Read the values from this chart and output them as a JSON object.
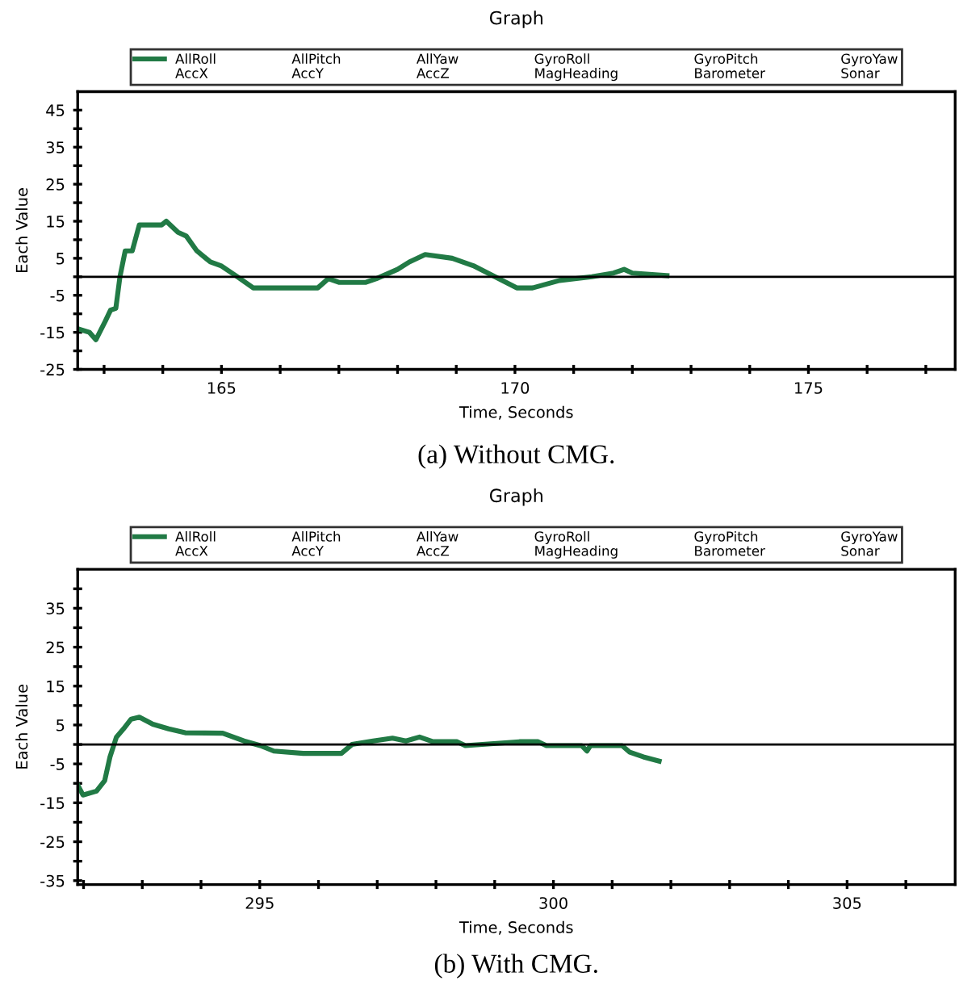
{
  "chart_data": [
    {
      "type": "line",
      "title": "Graph",
      "xlabel": "Time, Seconds",
      "ylabel": "Each Value",
      "x": [
        162.55,
        162.75,
        162.86,
        163.02,
        163.11,
        163.2,
        163.27,
        163.36,
        163.48,
        163.6,
        163.98,
        164.06,
        164.26,
        164.4,
        164.58,
        164.81,
        164.99,
        165.27,
        165.54,
        166.64,
        166.82,
        167.0,
        167.46,
        167.64,
        168.0,
        168.2,
        168.47,
        168.93,
        169.29,
        169.66,
        170.03,
        170.3,
        170.76,
        171.31,
        171.68,
        171.86,
        172.0,
        172.59
      ],
      "series": [
        {
          "name": "AllRoll",
          "color": "#217a45",
          "values": [
            -14,
            -15,
            -17,
            -12,
            -9,
            -8.5,
            0,
            7,
            7,
            14,
            14,
            15,
            12,
            11,
            7,
            4,
            3,
            0,
            -3,
            -3,
            -0.5,
            -1.5,
            -1.5,
            -0.5,
            2,
            4,
            6,
            5,
            3,
            0,
            -3,
            -3,
            -1,
            0,
            1,
            2,
            1,
            0.3
          ]
        }
      ],
      "annotations": [
        "(a) Without CMG.",
        "AllPitch",
        "AllYaw",
        "GyroRoll",
        "GyroPitch",
        "GyroYaw",
        "AccX",
        "AccY",
        "AccZ",
        "MagHeading",
        "Barometer",
        "Sonar"
      ],
      "xlim": [
        162.55,
        177.5
      ],
      "xticks": [
        {
          "value": 163,
          "label": null
        },
        {
          "value": 164,
          "label": null
        },
        165,
        {
          "value": 166,
          "label": null
        },
        {
          "value": 167,
          "label": null
        },
        {
          "value": 168,
          "label": null
        },
        {
          "value": 169,
          "label": null
        },
        170,
        {
          "value": 171,
          "label": null
        },
        {
          "value": 172,
          "label": null
        },
        {
          "value": 173,
          "label": null
        },
        {
          "value": 174,
          "label": null
        },
        175,
        {
          "value": 176,
          "label": null
        },
        {
          "value": 177,
          "label": null
        }
      ],
      "ylim": [
        -25,
        50
      ],
      "yticks": [
        -25,
        {
          "value": -20,
          "label": null
        },
        -15,
        {
          "value": -10,
          "label": null
        },
        -5,
        {
          "value": 0,
          "label": null
        },
        5,
        {
          "value": 10,
          "label": null
        },
        15,
        {
          "value": 20,
          "label": null
        },
        25,
        {
          "value": 30,
          "label": null
        },
        35,
        {
          "value": 40,
          "label": null
        },
        45
      ],
      "ref_lines": [
        {
          "axis": "y",
          "value": 0,
          "color": "#000000"
        }
      ],
      "legend": "top",
      "grid": false
    },
    {
      "type": "line",
      "title": "Graph",
      "xlabel": "Time, Seconds",
      "ylabel": "Each Value",
      "x": [
        291.9,
        291.99,
        292.22,
        292.36,
        292.45,
        292.56,
        292.68,
        292.81,
        292.95,
        293.18,
        293.45,
        293.73,
        294.37,
        294.73,
        295.01,
        295.24,
        295.74,
        296.39,
        296.57,
        296.93,
        297.26,
        297.49,
        297.72,
        297.95,
        298.36,
        298.5,
        299.42,
        299.74,
        299.88,
        300.48,
        300.57,
        300.63,
        301.17,
        301.3,
        301.53,
        301.8
      ],
      "series": [
        {
          "name": "AllRoll",
          "color": "#217a45",
          "values": [
            -10.4,
            -13,
            -12,
            -9.3,
            -3.2,
            1.9,
            4,
            6.5,
            7,
            5.2,
            4,
            3,
            2.9,
            0.9,
            -0.3,
            -1.7,
            -2.3,
            -2.3,
            0,
            0.9,
            1.6,
            0.9,
            1.9,
            0.7,
            0.7,
            -0.3,
            0.7,
            0.7,
            -0.3,
            -0.3,
            -1.7,
            -0.3,
            -0.3,
            -2,
            -3.2,
            -4.3
          ]
        }
      ],
      "annotations": [
        "(b) With CMG.",
        "AllPitch",
        "AllYaw",
        "GyroRoll",
        "GyroPitch",
        "GyroYaw",
        "AccX",
        "AccY",
        "AccZ",
        "MagHeading",
        "Barometer",
        "Sonar"
      ],
      "xlim": [
        291.9,
        306.84
      ],
      "xticks": [
        {
          "value": 292,
          "label": null
        },
        {
          "value": 293,
          "label": null
        },
        {
          "value": 294,
          "label": null
        },
        295,
        {
          "value": 296,
          "label": null
        },
        {
          "value": 297,
          "label": null
        },
        {
          "value": 298,
          "label": null
        },
        {
          "value": 299,
          "label": null
        },
        300,
        {
          "value": 301,
          "label": null
        },
        {
          "value": 302,
          "label": null
        },
        {
          "value": 303,
          "label": null
        },
        {
          "value": 304,
          "label": null
        },
        305,
        {
          "value": 306,
          "label": null
        }
      ],
      "ylim": [
        -36,
        45
      ],
      "yticks": [
        -35,
        {
          "value": -30,
          "label": null
        },
        -25,
        {
          "value": -20,
          "label": null
        },
        -15,
        {
          "value": -10,
          "label": null
        },
        -5,
        {
          "value": 0,
          "label": null
        },
        5,
        {
          "value": 10,
          "label": null
        },
        15,
        {
          "value": 20,
          "label": null
        },
        25,
        {
          "value": 30,
          "label": null
        },
        35,
        {
          "value": 40,
          "label": null
        }
      ],
      "ref_lines": [
        {
          "axis": "y",
          "value": 0,
          "color": "#000000"
        }
      ],
      "legend": "top",
      "grid": false
    }
  ]
}
